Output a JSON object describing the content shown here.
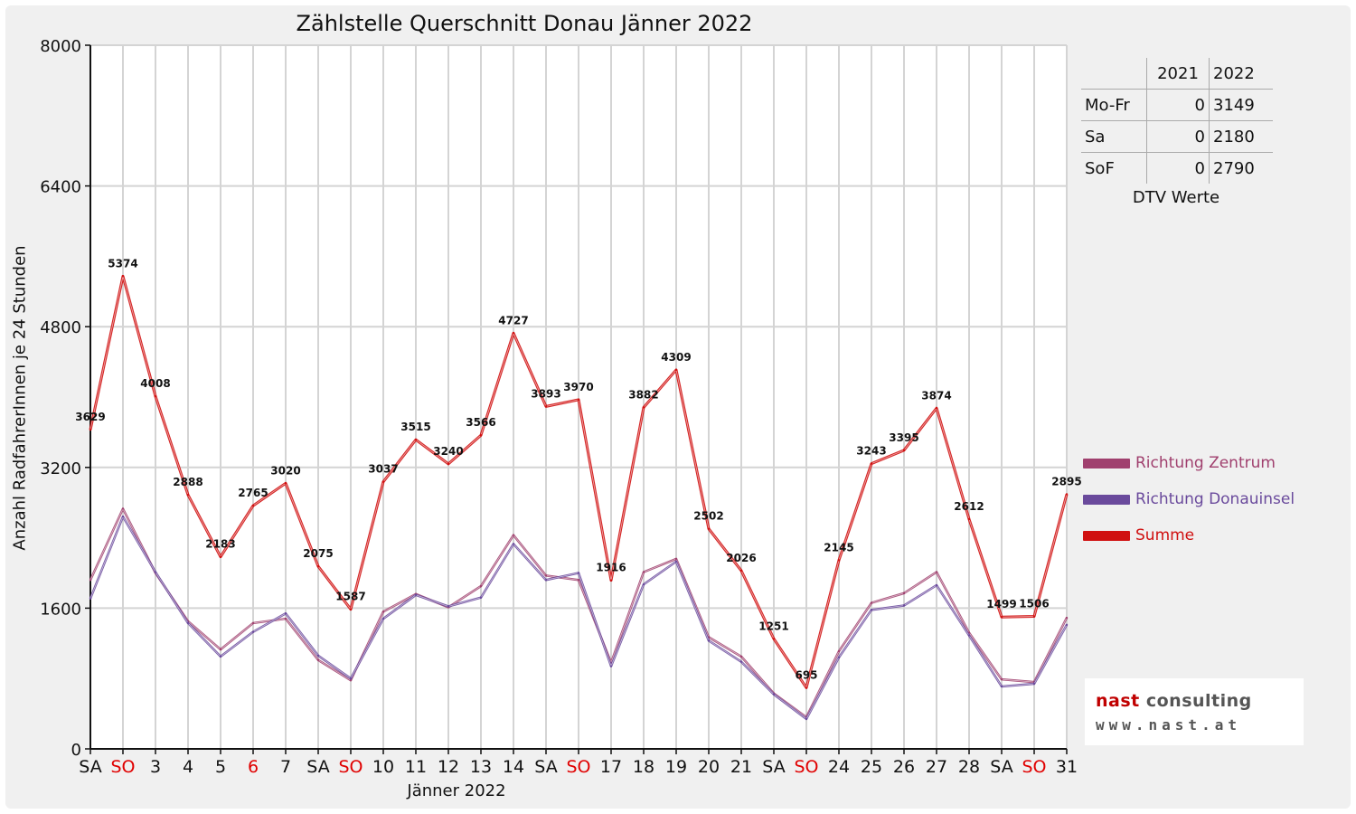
{
  "chart_data": {
    "type": "line",
    "title": "Zählstelle Querschnitt Donau Jänner 2022",
    "xlabel": "Jänner 2022",
    "ylabel": "Anzahl RadfahrerInnen je 24 Stunden",
    "ylim": [
      0,
      8000
    ],
    "yticks": [
      0,
      1600,
      3200,
      4800,
      6400,
      8000
    ],
    "grid": true,
    "legend_position": "right",
    "categories": [
      "SA",
      "SO",
      "3",
      "4",
      "5",
      "6",
      "7",
      "SA",
      "SO",
      "10",
      "11",
      "12",
      "13",
      "14",
      "SA",
      "SO",
      "17",
      "18",
      "19",
      "20",
      "21",
      "SA",
      "SO",
      "24",
      "25",
      "26",
      "27",
      "28",
      "SA",
      "SO",
      "31"
    ],
    "category_colors": [
      "#111111",
      "#e00000",
      "#111111",
      "#111111",
      "#111111",
      "#e00000",
      "#111111",
      "#111111",
      "#e00000",
      "#111111",
      "#111111",
      "#111111",
      "#111111",
      "#111111",
      "#111111",
      "#e00000",
      "#111111",
      "#111111",
      "#111111",
      "#111111",
      "#111111",
      "#111111",
      "#e00000",
      "#111111",
      "#111111",
      "#111111",
      "#111111",
      "#111111",
      "#111111",
      "#e00000",
      "#111111"
    ],
    "series": [
      {
        "name": "Richtung Zentrum",
        "color": "#a0406e",
        "values": [
          1920,
          2730,
          2000,
          1450,
          1130,
          1430,
          1480,
          1010,
          780,
          1560,
          1760,
          1610,
          1850,
          2430,
          1970,
          1920,
          980,
          2010,
          2160,
          1270,
          1050,
          630,
          360,
          1110,
          1660,
          1770,
          2010,
          1320,
          790,
          760,
          1490
        ]
      },
      {
        "name": "Richtung Donauinsel",
        "color": "#6a4a9c",
        "values": [
          1710,
          2640,
          2010,
          1430,
          1050,
          1330,
          1540,
          1060,
          800,
          1480,
          1750,
          1620,
          1720,
          2330,
          1920,
          2000,
          940,
          1870,
          2130,
          1230,
          990,
          620,
          340,
          1040,
          1580,
          1630,
          1860,
          1290,
          710,
          740,
          1410
        ]
      },
      {
        "name": "Summe",
        "color": "#d01010",
        "values": [
          3629,
          5374,
          4008,
          2888,
          2183,
          2765,
          3020,
          2075,
          1587,
          3037,
          3515,
          3240,
          3566,
          4727,
          3893,
          3970,
          1916,
          3882,
          4309,
          2502,
          2026,
          1251,
          695,
          2145,
          3243,
          3395,
          3874,
          2612,
          1499,
          1506,
          2895
        ]
      }
    ],
    "data_labels": [
      "3629",
      "5374",
      "4008",
      "2888",
      "2183",
      "2765",
      "3020",
      "2075",
      "1587",
      "3037",
      "3515",
      "3240",
      "3566",
      "4727",
      "3893",
      "3970",
      "1916",
      "3882",
      "4309",
      "2502",
      "2026",
      "1251",
      "695",
      "2145",
      "3243",
      "3395",
      "3874",
      "2612",
      "1499",
      "1506",
      "2895"
    ]
  },
  "dtv_table": {
    "headers": [
      "",
      "2021",
      "2022"
    ],
    "rows": [
      {
        "label": "Mo-Fr",
        "v2021": "0",
        "v2022": "3149"
      },
      {
        "label": "Sa",
        "v2021": "0",
        "v2022": "2180"
      },
      {
        "label": "SoF",
        "v2021": "0",
        "v2022": "2790"
      }
    ],
    "caption": "DTV Werte"
  },
  "legend": [
    {
      "label": "Richtung Zentrum",
      "color": "#a0406e"
    },
    {
      "label": "Richtung Donauinsel",
      "color": "#6a4a9c"
    },
    {
      "label": "Summe",
      "color": "#d01010"
    }
  ],
  "logo": {
    "name_part1": "nast",
    "name_part2": " consulting",
    "url": "www.nast.at"
  }
}
